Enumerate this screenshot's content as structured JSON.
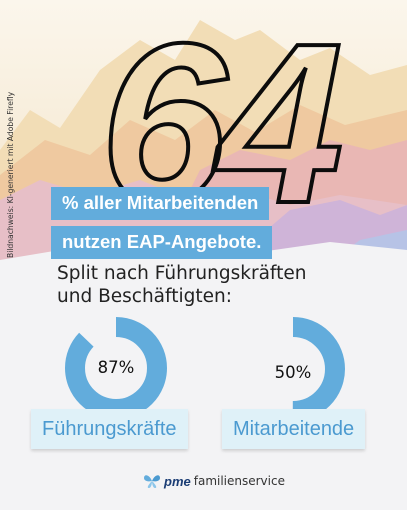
{
  "hero": {
    "big_number": "64",
    "credit": "Bildnachweis: KI-generiert mit Adobe Firefly"
  },
  "headline": {
    "line1": "% aller Mitarbeitenden",
    "line2": "nutzen EAP-Angebote."
  },
  "subtitle": {
    "line1": "Split nach Führungskräften",
    "line2": "und Beschäftigten:"
  },
  "chart_data": {
    "type": "pie",
    "charts": [
      {
        "category": "Führungskräfte",
        "label": "87%",
        "value": 87
      },
      {
        "category": "Mitarbeitende",
        "label": "50%",
        "value": 50
      }
    ]
  },
  "colors": {
    "accent": "#62acdc",
    "category_text": "#4b9ad0",
    "category_bg": "#dff1f8",
    "ring_track": "#f3f3f5"
  },
  "logo": {
    "brand": "pme",
    "suffix": "familienservice",
    "icon": "butterfly-logo-icon"
  }
}
